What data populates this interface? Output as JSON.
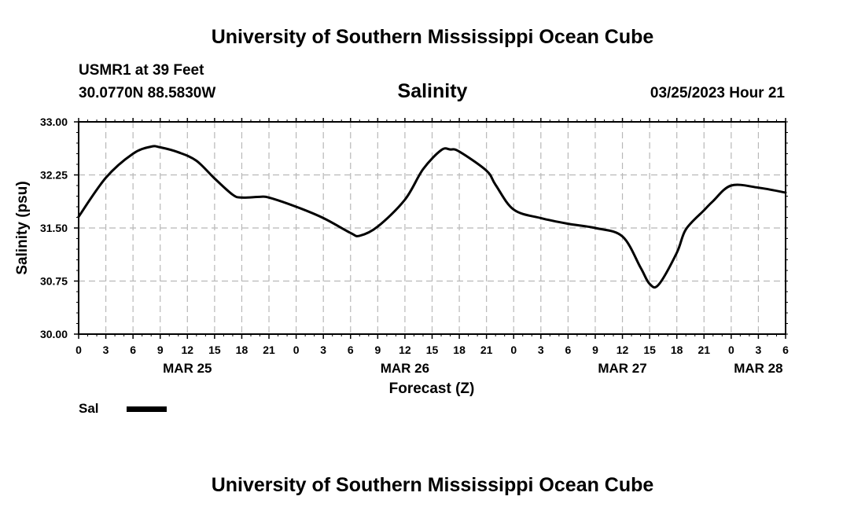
{
  "header": {
    "title": "University of Southern Mississippi Ocean Cube",
    "station": "USMR1 at 39 Feet",
    "coords": "30.0770N  88.5830W",
    "valid_time": "03/25/2023 Hour 21",
    "footer_title": "University of Southern Mississippi Ocean Cube"
  },
  "chart_data": {
    "type": "line",
    "title": "Salinity",
    "xlabel": "Forecast (Z)",
    "ylabel": "Salinity (psu)",
    "ylim": [
      30.0,
      33.0
    ],
    "yticks": [
      "30.00",
      "30.75",
      "31.50",
      "32.25",
      "33.00"
    ],
    "xlim": [
      0,
      78
    ],
    "xtick_hours": [
      0,
      3,
      6,
      9,
      12,
      15,
      18,
      21,
      24,
      27,
      30,
      33,
      36,
      39,
      42,
      45,
      48,
      51,
      54,
      57,
      60,
      63,
      66,
      69,
      72,
      75,
      78
    ],
    "xtick_labels": [
      "0",
      "3",
      "6",
      "9",
      "12",
      "15",
      "18",
      "21",
      "0",
      "3",
      "6",
      "9",
      "12",
      "15",
      "18",
      "21",
      "0",
      "3",
      "6",
      "9",
      "12",
      "15",
      "18",
      "21",
      "0",
      "3",
      "6"
    ],
    "date_labels": [
      {
        "hour": 12,
        "label": "MAR 25"
      },
      {
        "hour": 36,
        "label": "MAR 26"
      },
      {
        "hour": 60,
        "label": "MAR 27"
      },
      {
        "hour": 75,
        "label": "MAR 28"
      }
    ],
    "grid": true,
    "legend": {
      "position": "bottom-left",
      "label": "Sal"
    },
    "series": [
      {
        "name": "Sal",
        "color": "#000000",
        "x": [
          0,
          3,
          6,
          8,
          9,
          11,
          13,
          15,
          17,
          18,
          20,
          21,
          24,
          27,
          30,
          31,
          33,
          36,
          38,
          40,
          41,
          42,
          45,
          46,
          48,
          51,
          54,
          57,
          60,
          62,
          63,
          64,
          66,
          67,
          69,
          70,
          72,
          75,
          78
        ],
        "values": [
          31.66,
          32.21,
          32.55,
          32.65,
          32.64,
          32.57,
          32.45,
          32.2,
          31.97,
          31.93,
          31.94,
          31.93,
          31.8,
          31.64,
          31.43,
          31.39,
          31.52,
          31.9,
          32.33,
          32.6,
          32.61,
          32.58,
          32.31,
          32.11,
          31.76,
          31.64,
          31.56,
          31.5,
          31.38,
          30.94,
          30.71,
          30.7,
          31.15,
          31.48,
          31.75,
          31.88,
          32.1,
          32.07,
          32.0
        ]
      }
    ]
  }
}
